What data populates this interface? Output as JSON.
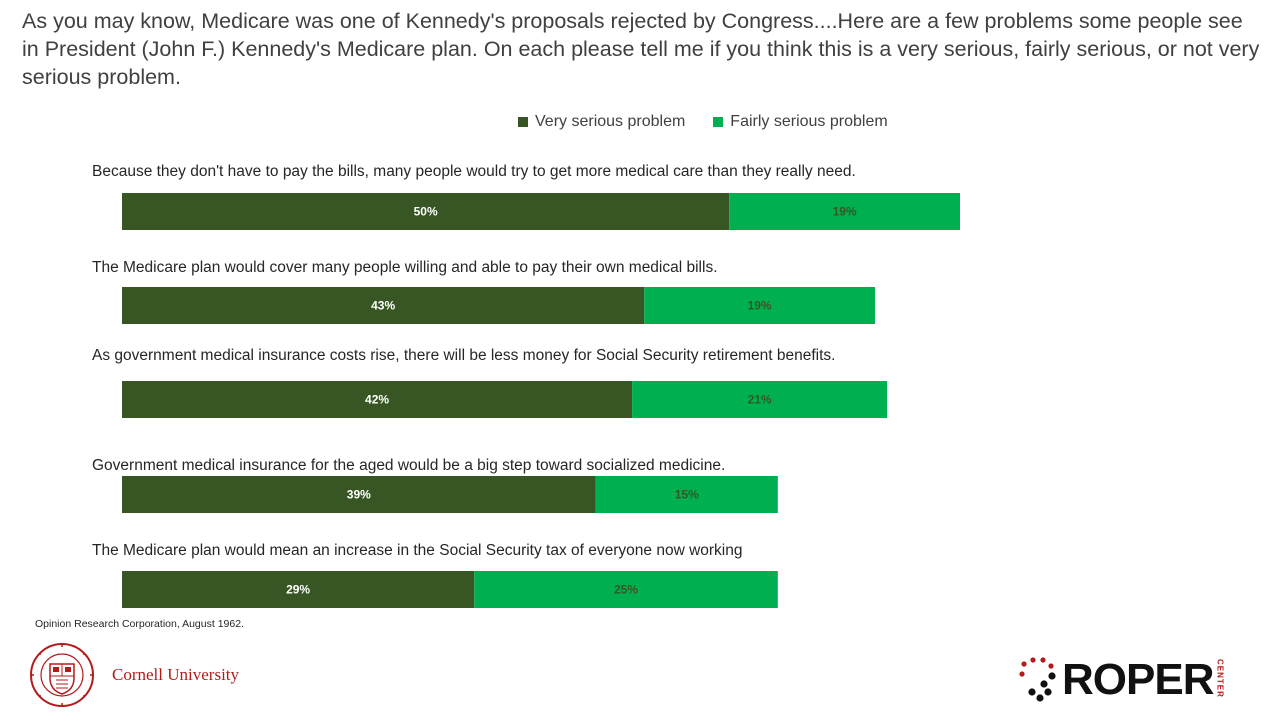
{
  "title": "As you may know, Medicare was one of Kennedy's proposals rejected by Congress....Here are a few problems some people see in President (John F.) Kennedy's Medicare plan.  On each please tell me if you think this is a very serious, fairly serious, or not very serious problem.",
  "source": "Opinion Research Corporation, August 1962.",
  "logos": {
    "cornell": "Cornell University",
    "roper": "ROPER",
    "roper_sub": "CENTER"
  },
  "colors": {
    "very_serious": "#375623",
    "fairly_serious": "#00b050",
    "very_serious_label": "#ffffff",
    "fairly_serious_label": "#375623"
  },
  "chart_data": {
    "type": "bar",
    "orientation": "horizontal",
    "stacked": true,
    "legend_position": "top",
    "grid": false,
    "xlim": [
      0,
      69
    ],
    "categories": [
      "Because they don't have to pay the bills, many people would try to get more medical care than they really need.",
      "The Medicare plan would cover many people willing and able to pay their own medical bills.",
      "As government medical insurance costs rise, there will be less money for Social Security retirement benefits.",
      "Government medical insurance for the aged would be a big step toward socialized medicine.",
      "The Medicare plan would mean an increase in the Social Security tax of everyone now working"
    ],
    "series": [
      {
        "name": "Very serious problem",
        "values": [
          50,
          43,
          42,
          39,
          29
        ],
        "labels": [
          "50%",
          "43%",
          "42%",
          "39%",
          "29%"
        ]
      },
      {
        "name": "Fairly serious problem",
        "values": [
          19,
          19,
          21,
          15,
          25
        ],
        "labels": [
          "19%",
          "19%",
          "21%",
          "15%",
          "25%"
        ]
      }
    ]
  }
}
